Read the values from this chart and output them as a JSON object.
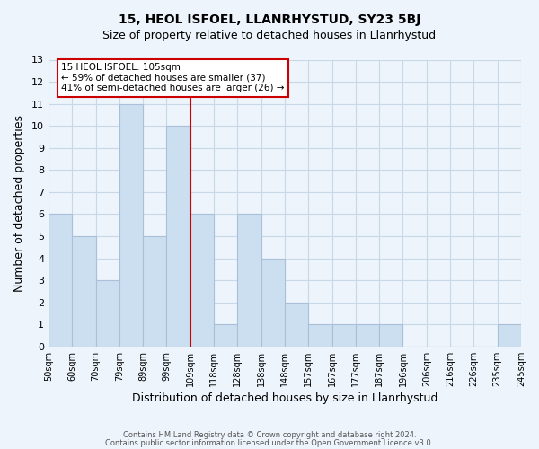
{
  "title1": "15, HEOL ISFOEL, LLANRHYSTUD, SY23 5BJ",
  "title2": "Size of property relative to detached houses in Llanrhystud",
  "xlabel": "Distribution of detached houses by size in Llanrhystud",
  "ylabel": "Number of detached properties",
  "bin_labels": [
    "50sqm",
    "60sqm",
    "70sqm",
    "79sqm",
    "89sqm",
    "99sqm",
    "109sqm",
    "118sqm",
    "128sqm",
    "138sqm",
    "148sqm",
    "157sqm",
    "167sqm",
    "177sqm",
    "187sqm",
    "196sqm",
    "206sqm",
    "216sqm",
    "226sqm",
    "235sqm",
    "245sqm"
  ],
  "bin_values": [
    6,
    5,
    3,
    11,
    5,
    10,
    6,
    1,
    6,
    4,
    2,
    1,
    1,
    1,
    1,
    0,
    0,
    0,
    0,
    1
  ],
  "bar_color": "#ccdff0",
  "bar_edge_color": "#aabfd8",
  "vline_x_index": 6,
  "vline_color": "#cc0000",
  "annotation_title": "15 HEOL ISFOEL: 105sqm",
  "annotation_line1": "← 59% of detached houses are smaller (37)",
  "annotation_line2": "41% of semi-detached houses are larger (26) →",
  "annotation_box_color": "#ffffff",
  "annotation_box_edge": "#cc0000",
  "ylim": [
    0,
    13
  ],
  "yticks": [
    0,
    1,
    2,
    3,
    4,
    5,
    6,
    7,
    8,
    9,
    10,
    11,
    12,
    13
  ],
  "footer1": "Contains HM Land Registry data © Crown copyright and database right 2024.",
  "footer2": "Contains public sector information licensed under the Open Government Licence v3.0.",
  "grid_color": "#c8d8e8",
  "background_color": "#edf4fb"
}
